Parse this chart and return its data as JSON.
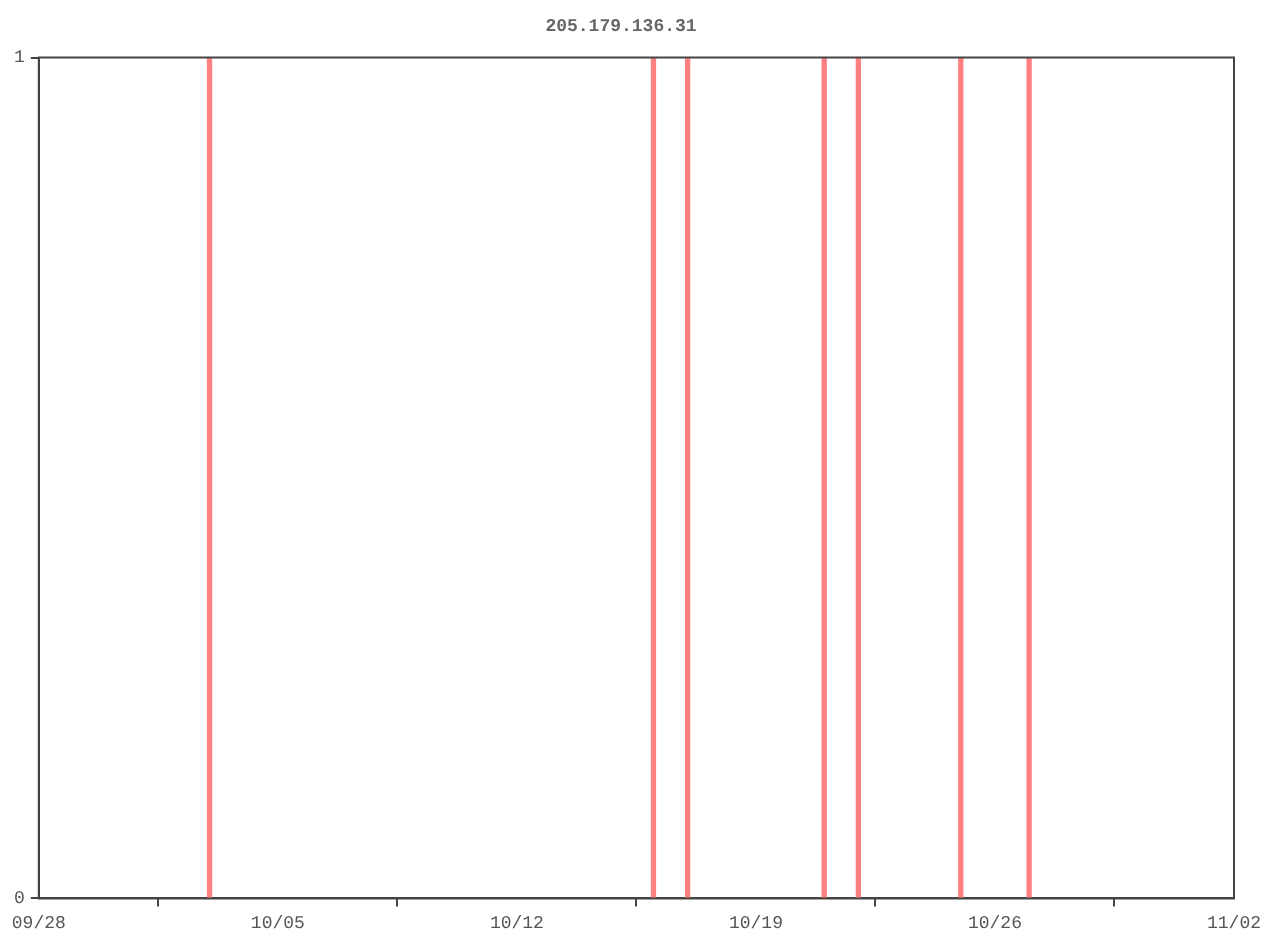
{
  "chart_data": {
    "type": "bar",
    "title": "205.179.136.31",
    "x": [
      "--10-03",
      "--10-16",
      "--10-17",
      "--10-21",
      "--10-22",
      "--10-25",
      "--10-27"
    ],
    "values": [
      1,
      1,
      1,
      1,
      1,
      1,
      1
    ],
    "color": "#ff8080",
    "xlim": [
      "--09-28",
      "--11-02"
    ],
    "xticks": [
      {
        "value": "--09-28",
        "label": "09/28"
      },
      {
        "value": "--10-05",
        "label": "10/05"
      },
      {
        "value": "--10-12",
        "label": "10/12"
      },
      {
        "value": "--10-19",
        "label": "10/19"
      },
      {
        "value": "--10-26",
        "label": "10/26"
      },
      {
        "value": "--11-02",
        "label": "11/02"
      }
    ],
    "ylim": [
      0,
      1
    ],
    "yticks": [
      0,
      1
    ],
    "grid": false,
    "legend": false
  }
}
